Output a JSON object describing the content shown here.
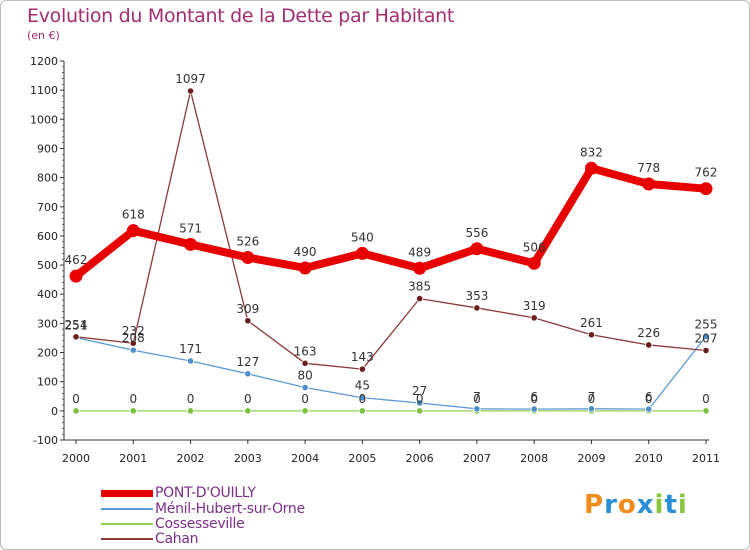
{
  "title": "Evolution du Montant de la Dette par Habitant",
  "subtitle": "(en €)",
  "logo": {
    "text": "Proxiti",
    "letters": [
      "P",
      "r",
      "o",
      "x",
      "i",
      "t",
      "i"
    ],
    "colors": [
      "#f08c1c",
      "#2a8fd6",
      "#f08c1c",
      "#2a8fd6",
      "#8cc63f",
      "#2a8fd6",
      "#8cc63f"
    ]
  },
  "chart_data": {
    "type": "line",
    "x": [
      "2000",
      "2001",
      "2002",
      "2003",
      "2004",
      "2005",
      "2006",
      "2007",
      "2008",
      "2009",
      "2010",
      "2011"
    ],
    "ylim": [
      -100,
      1200
    ],
    "yticks": [
      "-100",
      "0",
      "100",
      "200",
      "300",
      "400",
      "500",
      "600",
      "700",
      "800",
      "900",
      "1000",
      "1100",
      "1200"
    ],
    "grid": false,
    "legend_position": "bottom-left",
    "series": [
      {
        "name": "PONT-D'OUILLY",
        "color": "#e60000",
        "marker_color": "#e60000",
        "values": [
          462,
          618,
          571,
          526,
          490,
          540,
          489,
          556,
          506,
          832,
          778,
          762
        ],
        "labels": [
          "462",
          "618",
          "571",
          "526",
          "490",
          "540",
          "489",
          "556",
          "506",
          "832",
          "778",
          "762"
        ]
      },
      {
        "name": "Ménil-Hubert-sur-Orne",
        "color": "#5b9bd5",
        "marker_color": "#4f8fc9",
        "values": [
          251,
          208,
          171,
          127,
          80,
          45,
          27,
          7,
          6,
          7,
          6,
          255
        ],
        "labels": [
          "251",
          "208",
          "171",
          "127",
          "80",
          "45",
          "27",
          "7",
          "6",
          "7",
          "6",
          "255"
        ]
      },
      {
        "name": "Cossesseville",
        "color": "#92d050",
        "marker_color": "#7cc040",
        "values": [
          0,
          0,
          0,
          0,
          0,
          0,
          0,
          0,
          0,
          0,
          0,
          0
        ],
        "labels": [
          "0",
          "0",
          "0",
          "0",
          "0",
          "0",
          "0",
          "0",
          "0",
          "0",
          "0",
          "0"
        ]
      },
      {
        "name": "Cahan",
        "color": "#8b3a3a",
        "marker_color": "#6b1e1e",
        "values": [
          254,
          232,
          1097,
          309,
          163,
          143,
          385,
          353,
          319,
          261,
          226,
          207
        ],
        "labels": [
          "254",
          "232",
          "1097",
          "309",
          "163",
          "143",
          "385",
          "353",
          "319",
          "261",
          "226",
          "207"
        ]
      }
    ]
  }
}
